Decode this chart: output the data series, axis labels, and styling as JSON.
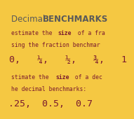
{
  "background_color": "#f5c842",
  "title_normal": "Decimal ",
  "title_bold": "BENCHMARKS",
  "title_color": "#595959",
  "body_color": "#7a1a2e",
  "line1a": "estimate the ",
  "line1b": "size",
  "line1c": " of a fra",
  "line2": "sing the fraction benchmar",
  "line3": "0,   ¼,   ½,   ¾,   1",
  "line4a": "stimate the ",
  "line4b": "size",
  "line4c": " of a dec",
  "line5": "he decimal benchmarks:",
  "line6": ".25,  0.5,  0.7",
  "title_fontsize": 8.5,
  "body_fontsize": 5.8,
  "large_fontsize": 9.5
}
